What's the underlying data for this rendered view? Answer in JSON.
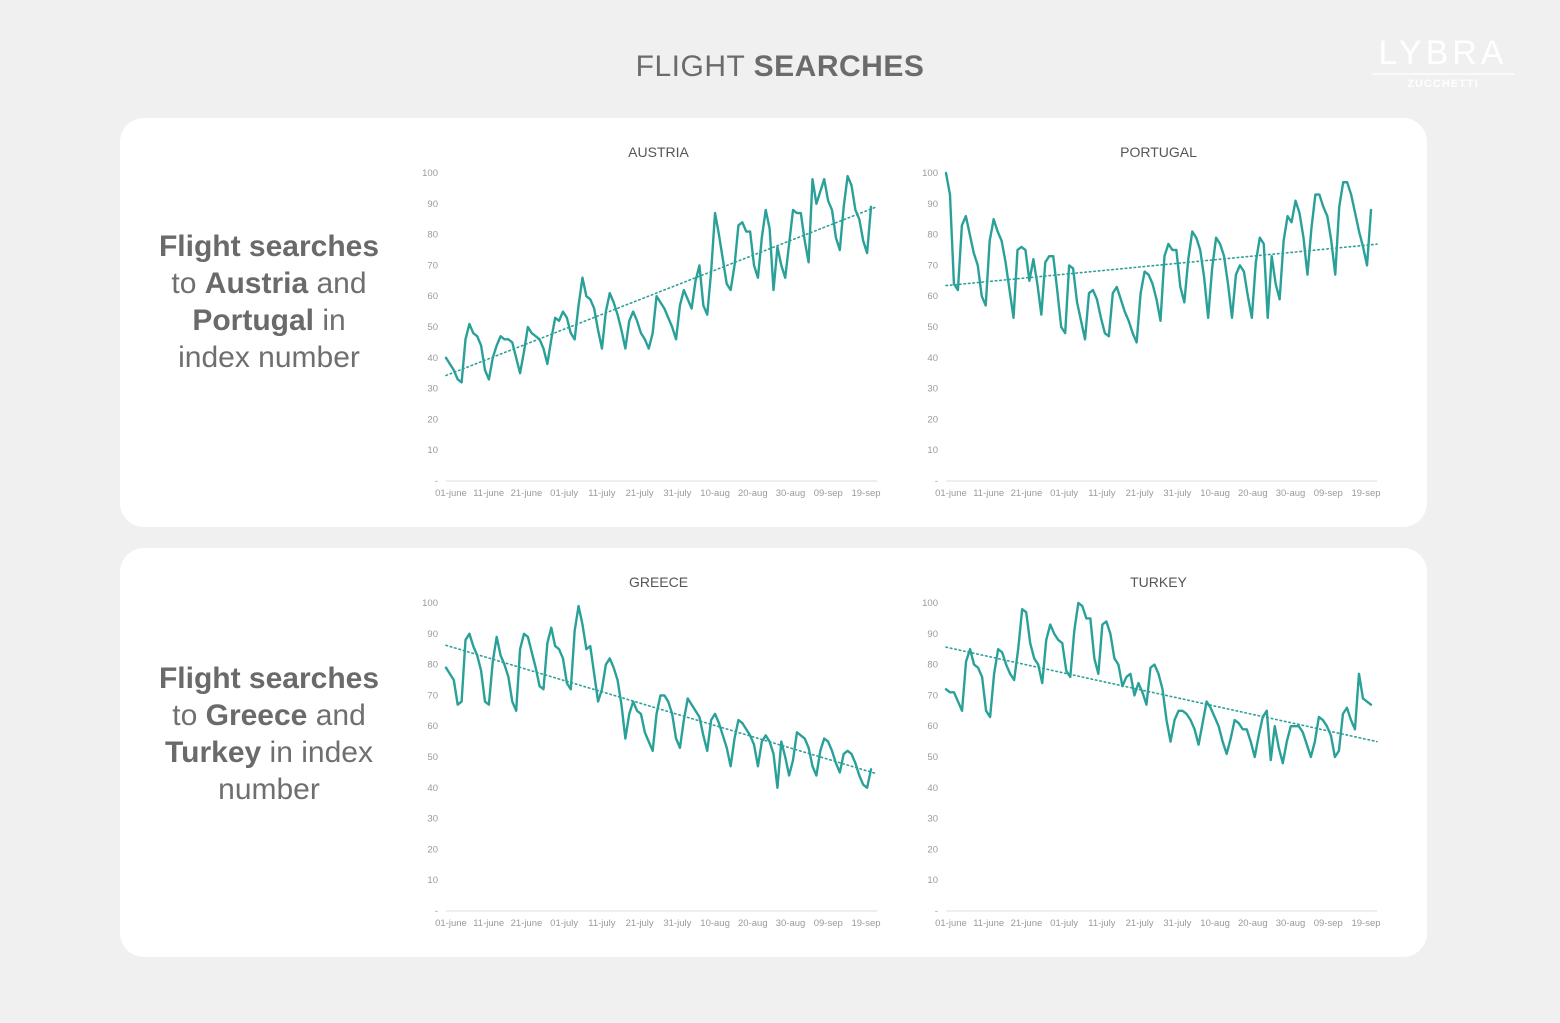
{
  "header": {
    "title_light": "FLIGHT",
    "title_bold": "SEARCHES"
  },
  "logo": {
    "name": "LYBRA",
    "sub": "ZUCCHETTI"
  },
  "panels": [
    {
      "caption": {
        "p1": "Flight searches",
        "p2": "to",
        "p3": "Austria",
        "p4": "and",
        "p5": "Portugal",
        "p6": "in",
        "p7": "index number"
      }
    },
    {
      "caption": {
        "p1": "Flight searches",
        "p2": "to",
        "p3": "Greece",
        "p4": "and",
        "p5": "Turkey",
        "p6": "in index",
        "p7": "number"
      }
    }
  ],
  "colors": {
    "series": "#2aa198",
    "panel": "#ffffff",
    "background": "#f0f0f0"
  },
  "chart_data": [
    {
      "type": "line",
      "title": "AUSTRIA",
      "ylim": [
        0,
        100
      ],
      "y_ticks": [
        "-",
        "10",
        "20",
        "30",
        "40",
        "50",
        "60",
        "70",
        "80",
        "90",
        "100"
      ],
      "x_tick_labels": [
        "01-june",
        "11-june",
        "21-june",
        "01-july",
        "11-july",
        "21-july",
        "31-july",
        "10-aug",
        "20-aug",
        "30-aug",
        "09-sep",
        "19-sep"
      ],
      "x_range": [
        "01-june",
        "22-sep"
      ],
      "trend": "linear",
      "values": [
        40,
        38,
        36,
        33,
        32,
        46,
        51,
        48,
        47,
        44,
        36,
        33,
        40,
        44,
        47,
        46,
        46,
        45,
        40,
        35,
        42,
        50,
        48,
        47,
        46,
        43,
        38,
        46,
        53,
        52,
        55,
        53,
        48,
        46,
        57,
        66,
        60,
        59,
        56,
        49,
        43,
        55,
        61,
        58,
        54,
        49,
        43,
        52,
        55,
        52,
        48,
        46,
        43,
        48,
        60,
        58,
        56,
        53,
        50,
        46,
        57,
        62,
        59,
        56,
        65,
        70,
        57,
        54,
        68,
        87,
        80,
        72,
        64,
        62,
        70,
        83,
        84,
        81,
        81,
        70,
        66,
        79,
        88,
        82,
        62,
        76,
        70,
        66,
        77,
        88,
        87,
        87,
        78,
        71,
        98,
        90,
        94,
        98,
        91,
        88,
        79,
        75,
        89,
        99,
        96,
        88,
        85,
        78,
        74,
        89
      ]
    },
    {
      "type": "line",
      "title": "PORTUGAL",
      "ylim": [
        0,
        100
      ],
      "y_ticks": [
        "-",
        "10",
        "20",
        "30",
        "40",
        "50",
        "60",
        "70",
        "80",
        "90",
        "100"
      ],
      "x_tick_labels": [
        "01-june",
        "11-june",
        "21-june",
        "01-july",
        "11-july",
        "21-july",
        "31-july",
        "10-aug",
        "20-aug",
        "30-aug",
        "09-sep",
        "19-sep"
      ],
      "x_range": [
        "01-june",
        "22-sep"
      ],
      "trend": "linear",
      "values": [
        100,
        93,
        64,
        62,
        83,
        86,
        80,
        74,
        70,
        60,
        57,
        78,
        85,
        81,
        78,
        71,
        62,
        53,
        75,
        76,
        75,
        65,
        72,
        64,
        54,
        71,
        73,
        73,
        62,
        50,
        48,
        70,
        69,
        58,
        52,
        46,
        61,
        62,
        59,
        53,
        48,
        47,
        61,
        63,
        59,
        55,
        52,
        48,
        45,
        61,
        68,
        67,
        64,
        59,
        52,
        73,
        77,
        75,
        75,
        63,
        58,
        72,
        81,
        79,
        75,
        66,
        53,
        69,
        79,
        77,
        73,
        64,
        53,
        67,
        70,
        68,
        60,
        53,
        71,
        79,
        77,
        53,
        73,
        64,
        59,
        78,
        86,
        84,
        91,
        87,
        79,
        67,
        82,
        93,
        93,
        89,
        86,
        78,
        67,
        89,
        97,
        97,
        93,
        87,
        81,
        76,
        70,
        88
      ]
    },
    {
      "type": "line",
      "title": "GREECE",
      "ylim": [
        0,
        100
      ],
      "y_ticks": [
        "-",
        "10",
        "20",
        "30",
        "40",
        "50",
        "60",
        "70",
        "80",
        "90",
        "100"
      ],
      "x_tick_labels": [
        "01-june",
        "11-june",
        "21-june",
        "01-july",
        "11-july",
        "21-july",
        "31-july",
        "10-aug",
        "20-aug",
        "30-aug",
        "09-sep",
        "19-sep"
      ],
      "x_range": [
        "01-june",
        "22-sep"
      ],
      "trend": "linear",
      "values": [
        79,
        77,
        75,
        67,
        68,
        88,
        90,
        86,
        83,
        78,
        68,
        67,
        81,
        89,
        83,
        80,
        76,
        68,
        65,
        85,
        90,
        89,
        84,
        79,
        73,
        72,
        87,
        92,
        86,
        85,
        82,
        74,
        72,
        91,
        99,
        93,
        85,
        86,
        77,
        68,
        72,
        80,
        82,
        79,
        75,
        67,
        56,
        64,
        68,
        65,
        64,
        58,
        55,
        52,
        64,
        70,
        70,
        68,
        64,
        56,
        53,
        62,
        69,
        67,
        65,
        63,
        57,
        52,
        62,
        64,
        61,
        57,
        53,
        47,
        56,
        62,
        61,
        59,
        57,
        54,
        47,
        55,
        57,
        55,
        51,
        40,
        55,
        50,
        44,
        49,
        58,
        57,
        56,
        53,
        47,
        44,
        52,
        56,
        55,
        52,
        48,
        45,
        51,
        52,
        51,
        48,
        44,
        41,
        40,
        46
      ]
    },
    {
      "type": "line",
      "title": "TURKEY",
      "ylim": [
        0,
        100
      ],
      "y_ticks": [
        "-",
        "10",
        "20",
        "30",
        "40",
        "50",
        "60",
        "70",
        "80",
        "90",
        "100"
      ],
      "x_tick_labels": [
        "01-june",
        "11-june",
        "21-june",
        "01-july",
        "11-july",
        "21-july",
        "31-july",
        "10-aug",
        "20-aug",
        "30-aug",
        "09-sep",
        "19-sep"
      ],
      "x_range": [
        "01-june",
        "22-sep"
      ],
      "trend": "linear",
      "values": [
        72,
        71,
        71,
        68,
        65,
        81,
        85,
        80,
        79,
        76,
        65,
        63,
        77,
        85,
        84,
        80,
        77,
        75,
        85,
        98,
        97,
        87,
        82,
        80,
        74,
        88,
        93,
        90,
        88,
        87,
        78,
        76,
        91,
        100,
        99,
        95,
        95,
        82,
        77,
        93,
        94,
        90,
        82,
        80,
        73,
        76,
        77,
        70,
        74,
        71,
        67,
        79,
        80,
        77,
        72,
        62,
        55,
        62,
        65,
        65,
        64,
        62,
        59,
        54,
        61,
        68,
        66,
        63,
        60,
        55,
        51,
        56,
        62,
        61,
        59,
        59,
        55,
        50,
        57,
        63,
        65,
        49,
        60,
        53,
        48,
        55,
        60,
        60,
        60,
        58,
        54,
        50,
        55,
        63,
        62,
        60,
        57,
        50,
        52,
        64,
        66,
        62,
        59,
        77,
        69,
        68,
        67
      ]
    }
  ]
}
